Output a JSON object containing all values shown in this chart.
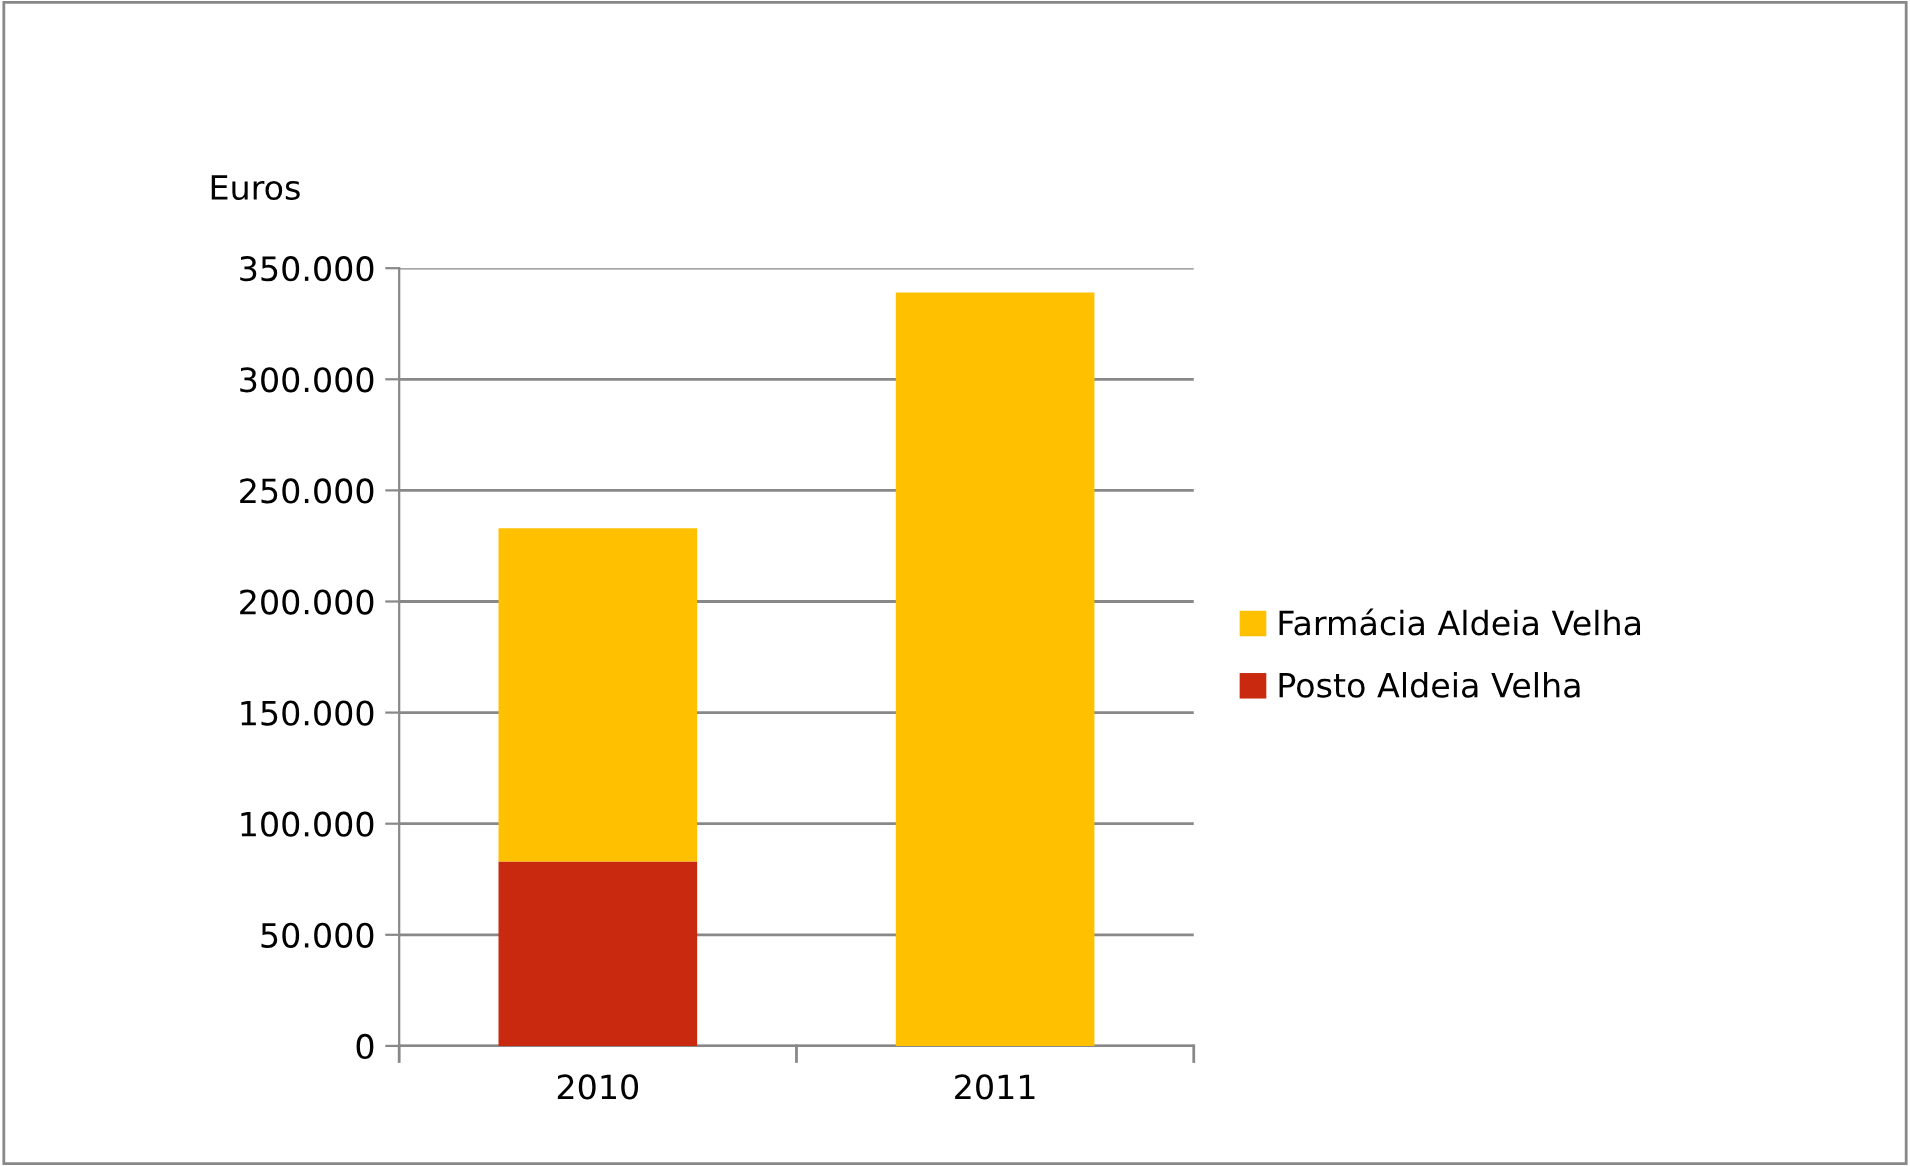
{
  "chart_data": {
    "type": "bar",
    "stacked": true,
    "ylabel": "Euros",
    "categories": [
      "2010",
      "2011"
    ],
    "series": [
      {
        "name": "Posto Aldeia Velha",
        "color": "#c9290e",
        "values": [
          83000,
          null
        ]
      },
      {
        "name": "Farmácia Aldeia Velha",
        "color": "#ffc000",
        "values": [
          150000,
          339000
        ]
      }
    ],
    "ylim": [
      0,
      350000
    ],
    "yticks": [
      0,
      {
        "value": 50000,
        "label": "50.000"
      },
      {
        "value": 100000,
        "label": "100.000"
      },
      {
        "value": 150000,
        "label": "150.000"
      },
      {
        "value": 200000,
        "label": "200.000"
      },
      {
        "value": 250000,
        "label": "250.000"
      },
      {
        "value": 300000,
        "label": "300.000"
      },
      {
        "value": 350000,
        "label": "350.000"
      }
    ],
    "grid": "y",
    "legend": "right"
  }
}
